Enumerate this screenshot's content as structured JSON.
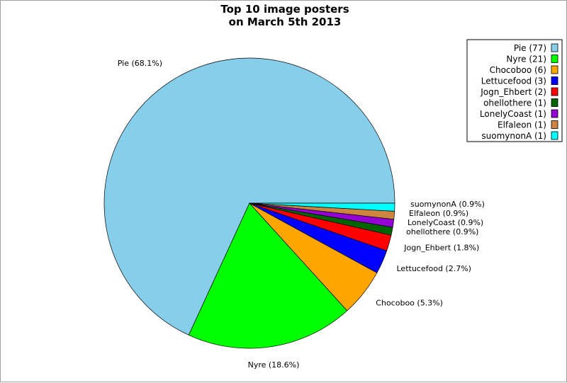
{
  "chart_data": {
    "type": "pie",
    "title_lines": [
      "Top 10 image posters",
      "on March 5th 2013"
    ],
    "slices": [
      {
        "name": "Pie",
        "value": 77,
        "percent_label": "Pie (68.1%)",
        "legend_label": "Pie (77)",
        "color": "#87ceeb"
      },
      {
        "name": "Nyre",
        "value": 21,
        "percent_label": "Nyre (18.6%)",
        "legend_label": "Nyre (21)",
        "color": "#00ff00"
      },
      {
        "name": "Chocoboo",
        "value": 6,
        "percent_label": "Chocoboo (5.3%)",
        "legend_label": "Chocoboo (6)",
        "color": "#ffa500"
      },
      {
        "name": "Lettucefood",
        "value": 3,
        "percent_label": "Lettucefood (2.7%)",
        "legend_label": "Lettucefood (3)",
        "color": "#0000ff"
      },
      {
        "name": "Jogn_Ehbert",
        "value": 2,
        "percent_label": "Jogn_Ehbert (1.8%)",
        "legend_label": "Jogn_Ehbert (2)",
        "color": "#ff0000"
      },
      {
        "name": "ohellothere",
        "value": 1,
        "percent_label": "ohellothere (0.9%)",
        "legend_label": "ohellothere (1)",
        "color": "#006400"
      },
      {
        "name": "LonelyCoast",
        "value": 1,
        "percent_label": "LonelyCoast (0.9%)",
        "legend_label": "LonelyCoast (1)",
        "color": "#9400d3"
      },
      {
        "name": "Elfaleon",
        "value": 1,
        "percent_label": "Elfaleon (0.9%)",
        "legend_label": "Elfaleon (1)",
        "color": "#cd853f"
      },
      {
        "name": "suomynonA",
        "value": 1,
        "percent_label": "suomynonA (0.9%)",
        "legend_label": "suomynonA (1)",
        "color": "#00ffff"
      }
    ],
    "legend_position": "top-right"
  }
}
